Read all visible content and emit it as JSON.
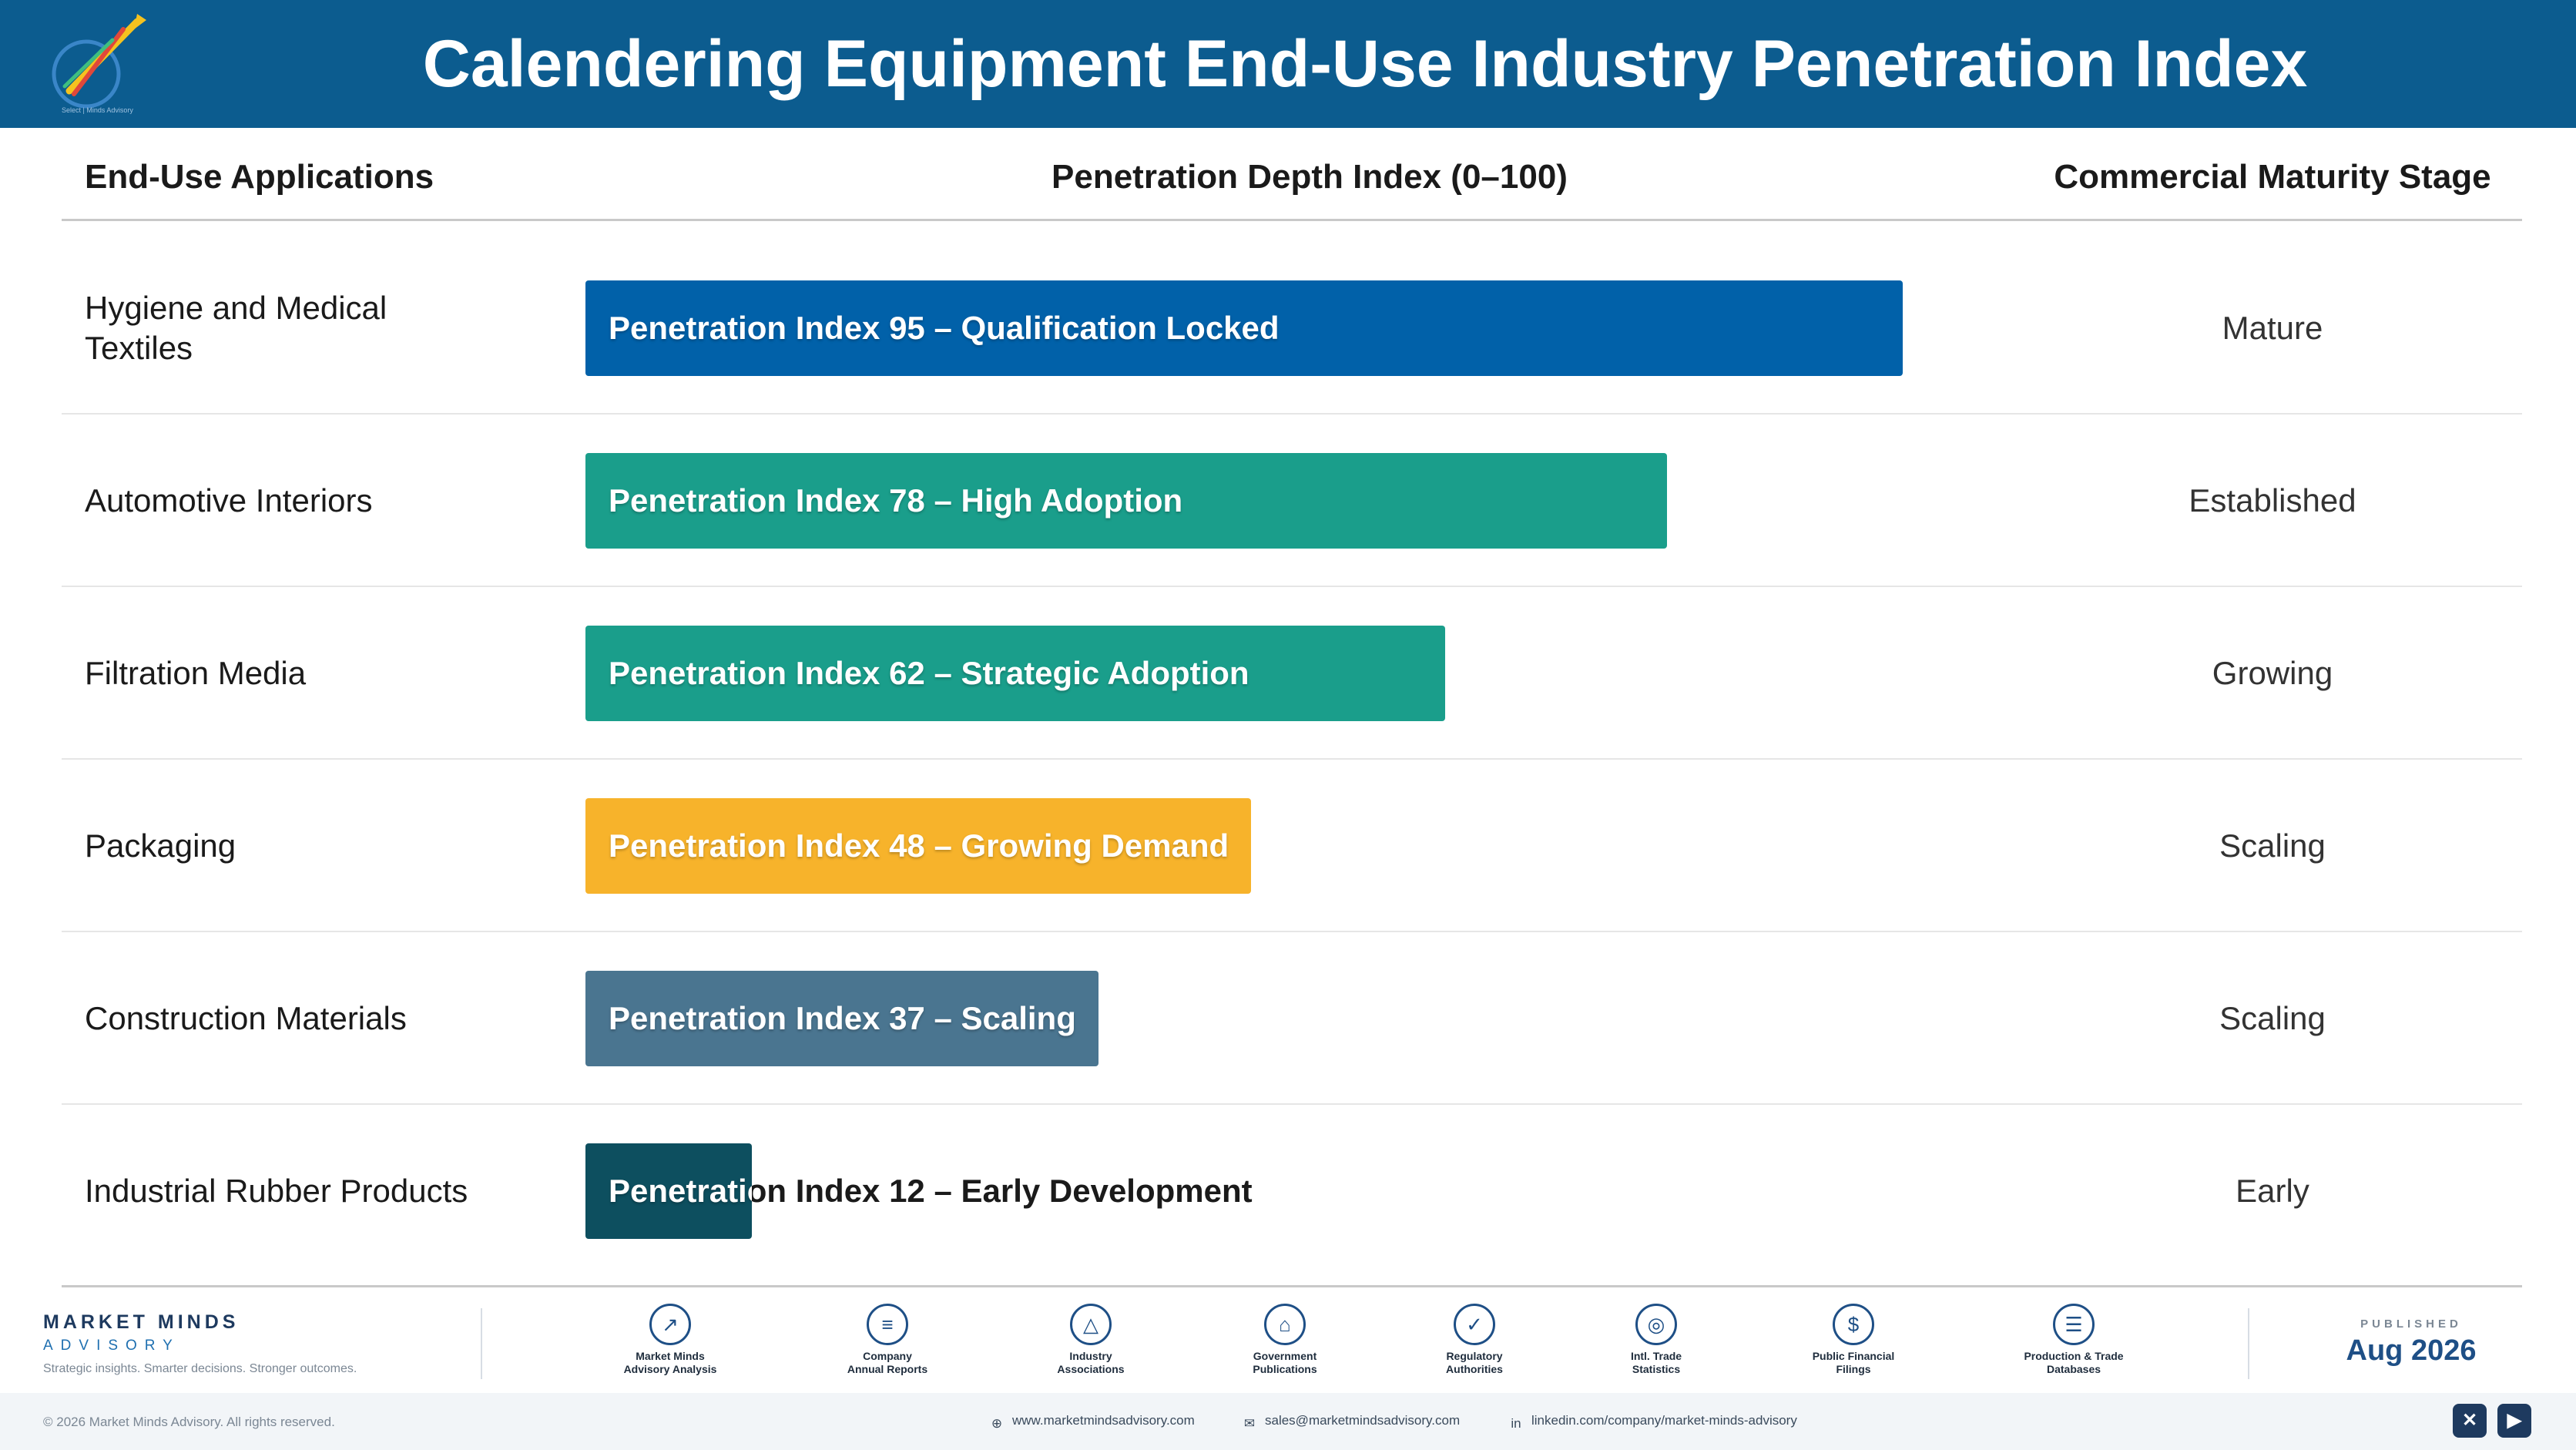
{
  "header": {
    "title": "Calendering Equipment End-Use Industry Penetration Index",
    "logo_icon": "rocket-chart-logo-icon"
  },
  "chart_data": {
    "type": "bar",
    "orientation": "horizontal",
    "columns": [
      "End-Use Applications",
      "Penetration Depth Index (0–100)",
      "Commercial Maturity Stage"
    ],
    "xlim": [
      0,
      100
    ],
    "categories": [
      "Hygiene and Medical Textiles",
      "Automotive Interiors",
      "Filtration Media",
      "Packaging",
      "Construction Materials",
      "Industrial Rubber Products"
    ],
    "values": [
      95,
      78,
      62,
      48,
      37,
      12
    ],
    "bar_labels": [
      "Penetration Index 95 – Qualification Locked",
      "Penetration Index 78 – High Adoption",
      "Penetration Index 62 – Strategic Adoption",
      "Penetration Index 48 – Growing Demand",
      "Penetration Index 37 – Scaling",
      "Penetration Index 12 – Early Development"
    ],
    "stages": [
      "Mature",
      "Established",
      "Growing",
      "Scaling",
      "Scaling",
      "Early"
    ],
    "colors": [
      "#0161a9",
      "#1a9e8b",
      "#1a9e8b",
      "#f7b32b",
      "#4a7590",
      "#0d4f5f"
    ]
  },
  "footer": {
    "brand_name": "MARKET MINDS",
    "brand_sub": "ADVISORY",
    "tagline": "Strategic insights. Smarter decisions. Stronger outcomes.",
    "sources": [
      {
        "icon": "chart-line-icon",
        "glyph": "↗",
        "label1": "Market Minds",
        "label2": "Advisory Analysis"
      },
      {
        "icon": "document-icon",
        "glyph": "≡",
        "label1": "Company",
        "label2": "Annual Reports"
      },
      {
        "icon": "network-icon",
        "glyph": "△",
        "label1": "Industry",
        "label2": "Associations"
      },
      {
        "icon": "government-building-icon",
        "glyph": "⌂",
        "label1": "Government",
        "label2": "Publications"
      },
      {
        "icon": "shield-check-icon",
        "glyph": "✓",
        "label1": "Regulatory",
        "label2": "Authorities"
      },
      {
        "icon": "globe-icon",
        "glyph": "◎",
        "label1": "Intl. Trade",
        "label2": "Statistics"
      },
      {
        "icon": "dollar-coin-icon",
        "glyph": "$",
        "label1": "Public Financial",
        "label2": "Filings"
      },
      {
        "icon": "database-icon",
        "glyph": "☰",
        "label1": "Production & Trade",
        "label2": "Databases"
      }
    ],
    "published_label": "PUBLISHED",
    "published_date": "Aug 2026",
    "copyright": "© 2026 Market Minds Advisory. All rights reserved.",
    "website": "www.marketmindsadvisory.com",
    "email": "sales@marketmindsadvisory.com",
    "linkedin": "linkedin.com/company/market-minds-advisory",
    "social_x": "✕",
    "social_video": "▶"
  }
}
